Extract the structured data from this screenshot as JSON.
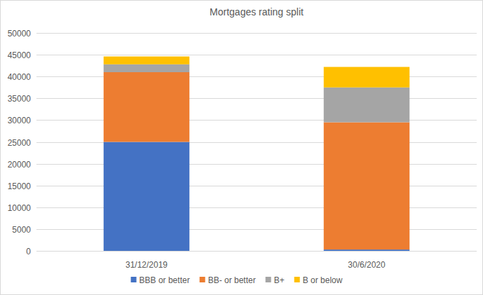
{
  "chart_data": {
    "type": "bar",
    "title": "Mortgages rating split",
    "stacked": true,
    "grid": true,
    "legend": "bottom",
    "categories": [
      "31/12/2019",
      "30/6/2020"
    ],
    "series": [
      {
        "name": "BBB or better",
        "color": "#4472c4",
        "values": [
          25000,
          300
        ]
      },
      {
        "name": "BB- or better",
        "color": "#ed7d31",
        "values": [
          16000,
          29200
        ]
      },
      {
        "name": "B+",
        "color": "#a5a5a5",
        "values": [
          1800,
          8000
        ]
      },
      {
        "name": "B or below",
        "color": "#ffc000",
        "values": [
          1800,
          4700
        ]
      }
    ],
    "ylim": [
      0,
      50000
    ],
    "yticks": [
      0,
      5000,
      10000,
      15000,
      20000,
      25000,
      30000,
      35000,
      40000,
      45000,
      50000
    ]
  }
}
